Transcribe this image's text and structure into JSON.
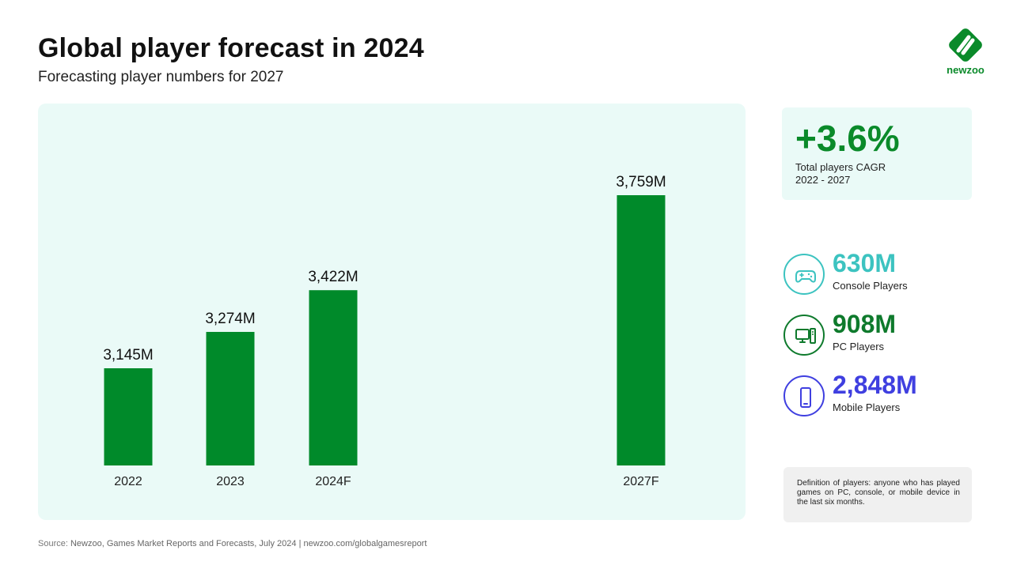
{
  "header": {
    "title": "Global player forecast in 2024",
    "subtitle": "Forecasting player numbers for 2027"
  },
  "logo": {
    "text": "newzoo"
  },
  "colors": {
    "bar": "#008a2a",
    "panel_bg": "#eafaf7",
    "console": "#3cc3c0",
    "pc": "#0e7a2c",
    "mobile": "#3f3fe0"
  },
  "chart_data": {
    "type": "bar",
    "title": "",
    "xlabel": "",
    "ylabel": "",
    "categories": [
      "2022",
      "2023",
      "2024F",
      "2027F"
    ],
    "values": [
      3145,
      3274,
      3422,
      3759
    ],
    "data_labels": [
      "3,145M",
      "3,274M",
      "3,422M",
      "3,759M"
    ],
    "unit": "M players",
    "grid": false,
    "ylim": [
      2800,
      3800
    ]
  },
  "cagr": {
    "value": "+3.6%",
    "label_line1": "Total players CAGR",
    "label_line2": "2022 - 2027"
  },
  "stats": [
    {
      "icon": "gamepad-icon",
      "value": "630M",
      "label": "Console Players"
    },
    {
      "icon": "pc-icon",
      "value": "908M",
      "label": "PC Players"
    },
    {
      "icon": "mobile-icon",
      "value": "2,848M",
      "label": "Mobile Players"
    }
  ],
  "definition": "Definition of players: anyone who has played games on PC, console, or mobile device in the last six months.",
  "source": {
    "label": "Source:",
    "text": "Newzoo, Games Market Reports and Forecasts, July 2024",
    "separator": "|",
    "url": "newzoo.com/globalgamesreport"
  }
}
